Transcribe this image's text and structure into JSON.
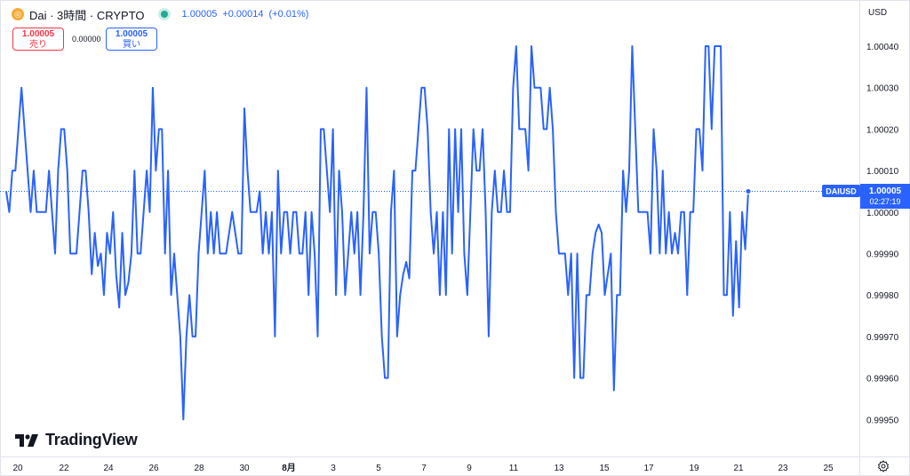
{
  "header": {
    "coin_icon": "dai-coin-icon",
    "symbol_title": "Dai · 3時間 · CRYPTO",
    "market_status_color": "#22ab94",
    "last_price": "1.00005",
    "change": "+0.00014",
    "change_pct": "(+0.01%)"
  },
  "trade": {
    "sell_price": "1.00005",
    "sell_label": "売り",
    "spread": "0.00000",
    "buy_price": "1.00005",
    "buy_label": "買い"
  },
  "currency": "USD",
  "branding": {
    "logo_text": "TradingView"
  },
  "price_tag": {
    "symbol": "DAIUSD",
    "price": "1.00005",
    "countdown": "02:27:19"
  },
  "colors": {
    "line": "#2962ff",
    "sell": "#f23645",
    "buy": "#2962ff",
    "tag_bg": "#2962ff"
  },
  "chart_data": {
    "type": "line",
    "title": "",
    "series": [
      {
        "values": [
          1.00005,
          1.0,
          1.0001,
          1.0001,
          1.0002,
          1.0003,
          1.0002,
          1.0001,
          1.0,
          1.0001,
          1.0,
          1.0,
          1.0,
          1.0,
          1.0001,
          1.0,
          0.9999,
          1.0001,
          1.0002,
          1.0002,
          1.0001,
          0.9999,
          0.9999,
          0.9999,
          1.0,
          1.0001,
          1.0001,
          1.0,
          0.99985,
          0.99995,
          0.99987,
          0.9999,
          0.9998,
          0.99995,
          0.9999,
          1.0,
          0.99985,
          0.99977,
          0.99995,
          0.9998,
          0.99983,
          0.9999,
          1.0001,
          0.9999,
          0.9999,
          1.0,
          1.0001,
          1.0,
          1.0003,
          1.0001,
          1.0002,
          1.0002,
          0.9999,
          1.0001,
          0.9998,
          0.9999,
          0.9998,
          0.9997,
          0.9995,
          0.9997,
          0.9998,
          0.9997,
          0.9997,
          0.9999,
          1.0,
          1.0001,
          0.9999,
          1.0,
          0.9999,
          1.0,
          0.9999,
          0.9999,
          0.9999,
          0.99995,
          1.0,
          0.99995,
          0.9999,
          0.9999,
          1.00025,
          1.0001,
          1.0,
          1.0,
          1.0,
          1.00005,
          0.9999,
          1.0,
          0.9999,
          1.0,
          0.9997,
          1.0001,
          0.9999,
          1.0,
          1.0,
          0.9999,
          1.0,
          1.0,
          0.9999,
          0.9999,
          1.0,
          0.9998,
          1.0,
          0.9999,
          0.9997,
          1.0002,
          1.0002,
          1.0001,
          1.0,
          1.0002,
          0.9998,
          1.0001,
          1.0,
          0.9998,
          0.9999,
          1.0,
          0.9999,
          1.0,
          0.9998,
          1.0,
          1.0003,
          0.9999,
          1.0,
          1.0,
          0.9999,
          0.9997,
          0.9996,
          0.9996,
          1.0,
          1.0001,
          0.9997,
          0.9998,
          0.99985,
          0.99988,
          0.99984,
          1.0001,
          1.0001,
          1.0002,
          1.0003,
          1.0003,
          1.0002,
          1.0,
          0.9999,
          1.0,
          0.9998,
          1.0,
          0.9998,
          1.0002,
          0.9999,
          1.0002,
          1.0,
          1.0002,
          0.9999,
          0.9998,
          1.0,
          1.0002,
          1.0001,
          1.0001,
          1.0002,
          1.0,
          0.9997,
          1.0,
          1.0001,
          1.0,
          1.0,
          1.0001,
          1.0,
          1.0,
          1.0003,
          1.0004,
          1.0002,
          1.0002,
          1.0002,
          1.0001,
          1.0004,
          1.0003,
          1.0003,
          1.0003,
          1.0002,
          1.0002,
          1.0003,
          1.0002,
          1.0,
          0.9999,
          0.9999,
          0.9999,
          0.9998,
          0.9999,
          0.9996,
          0.9999,
          0.9996,
          0.9996,
          0.9998,
          0.9998,
          0.9999,
          0.99995,
          0.99997,
          0.99995,
          0.9998,
          0.99985,
          0.9999,
          0.99957,
          0.9998,
          0.9998,
          1.0001,
          1.0,
          1.0001,
          1.0004,
          1.0002,
          1.0,
          1.0,
          1.0,
          1.0,
          0.9999,
          1.0002,
          1.0001,
          0.9999,
          1.0001,
          0.9999,
          1.0,
          0.9999,
          0.99995,
          0.9999,
          1.0,
          1.0,
          0.9998,
          1.0,
          1.0,
          1.0002,
          1.0002,
          1.0001,
          1.0004,
          1.0004,
          1.0002,
          1.0004,
          1.0004,
          1.0004,
          0.9998,
          0.9998,
          1.0,
          0.99975,
          0.99993,
          0.99977,
          1.0,
          0.99991,
          1.00005
        ]
      }
    ],
    "xlabel": "",
    "ylabel": "",
    "x_tick_labels": [
      "20",
      "22",
      "24",
      "26",
      "28",
      "30",
      "8月",
      "3",
      "5",
      "7",
      "9",
      "11",
      "13",
      "15",
      "17",
      "19",
      "21",
      "23",
      "25"
    ],
    "y_tick_labels": [
      "1.00040",
      "1.00030",
      "1.00020",
      "1.00010",
      "1.00000",
      "0.99990",
      "0.99980",
      "0.99970",
      "0.99960",
      "0.99950"
    ],
    "y_ticks": [
      1.0004,
      1.0003,
      1.0002,
      1.0001,
      1.0,
      0.9999,
      0.9998,
      0.9997,
      0.9996,
      0.9995
    ],
    "last_value": 1.00005,
    "grid": false,
    "legend": "top-left"
  }
}
